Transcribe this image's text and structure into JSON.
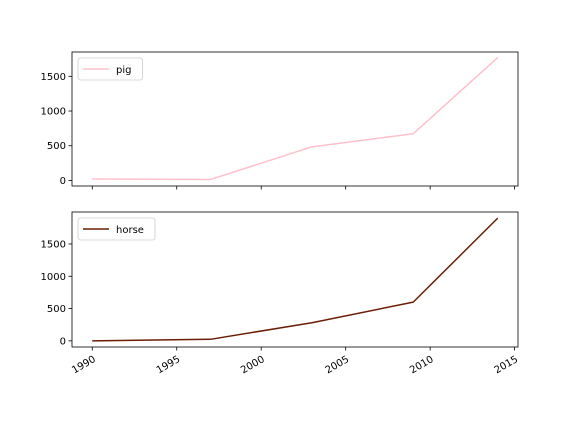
{
  "chart_data": {
    "type": "line",
    "x_ticks": [
      1990,
      1995,
      2000,
      2005,
      2010,
      2015
    ],
    "xlim": [
      1988.8,
      2015.2
    ],
    "subplots": [
      {
        "series": [
          {
            "name": "pig",
            "color": "#ffc0cb",
            "x": [
              1990,
              1997,
              2003,
              2009,
              2014
            ],
            "y": [
              20,
              14,
              484,
              673,
              1770
            ]
          }
        ],
        "ylim": [
          -80,
          1850
        ],
        "y_ticks": [
          0,
          500,
          1000,
          1500
        ],
        "legend_position": "upper-left",
        "grid": false
      },
      {
        "series": [
          {
            "name": "horse",
            "color": "#6b1e05",
            "x": [
              1990,
              1997,
              2003,
              2009,
              2014
            ],
            "y": [
              0,
              24,
              281,
              600,
              1900
            ]
          }
        ],
        "ylim": [
          -95,
          1995
        ],
        "y_ticks": [
          0,
          500,
          1000,
          1500
        ],
        "legend_position": "upper-left",
        "grid": false
      }
    ]
  }
}
